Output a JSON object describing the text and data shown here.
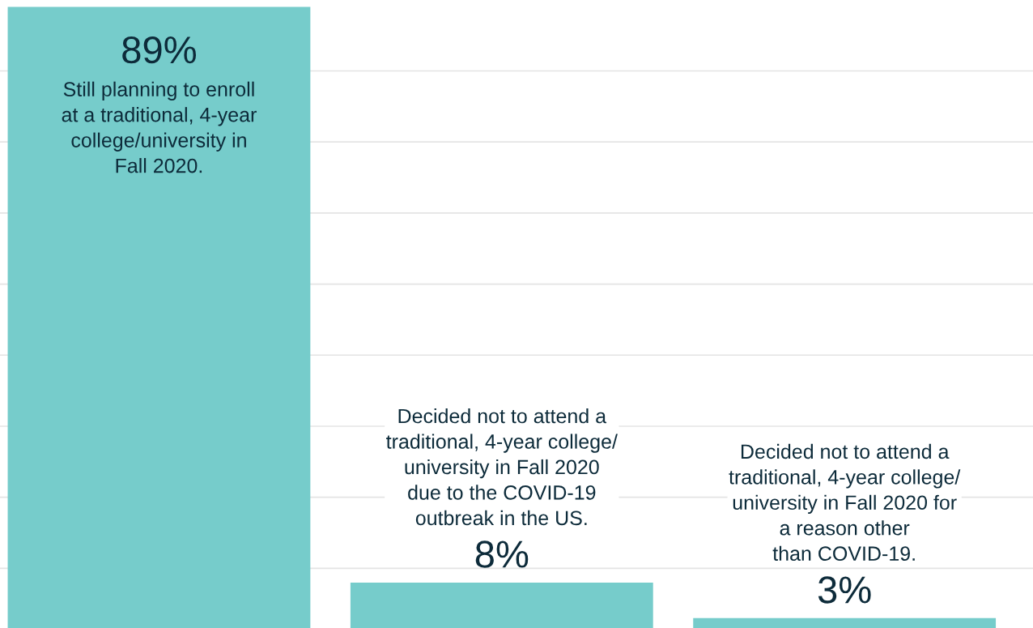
{
  "chart_data": {
    "type": "bar",
    "categories": [
      "Still planning to enroll\nat a traditional, 4-year\ncollege/university in\nFall 2020.",
      "Decided not to attend a\ntraditional, 4-year college/\nuniversity in Fall 2020\ndue to the COVID-19\noutbreak in the US.",
      "Decided not to attend a\ntraditional, 4-year college/\nuniversity in Fall 2020 for\na reason other\nthan COVID-19."
    ],
    "values": [
      89,
      8,
      3
    ],
    "value_labels": [
      "89%",
      "8%",
      "3%"
    ],
    "color": "#76cccb",
    "grid": "y"
  }
}
